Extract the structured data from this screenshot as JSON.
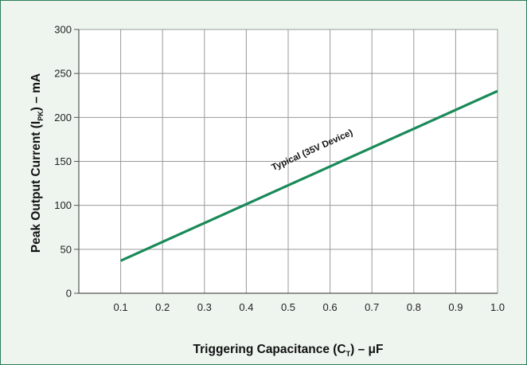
{
  "chart_data": {
    "type": "line",
    "title": "",
    "xlabel": {
      "main": "Triggering Capacitance (C",
      "sub": "T",
      "after": ") – μF"
    },
    "ylabel": {
      "main": "Peak Output Current (I",
      "sub": "PK",
      "after": ") – mA"
    },
    "x_ticks": [
      0.1,
      0.2,
      0.3,
      0.4,
      0.5,
      0.6,
      0.7,
      0.8,
      0.9,
      1.0
    ],
    "x_tick_labels": [
      "0.1",
      "0.2",
      "0.3",
      "0.4",
      "0.5",
      "0.6",
      "0.7",
      "0.8",
      "0.9",
      "1.0"
    ],
    "y_ticks": [
      0,
      50,
      100,
      150,
      200,
      250,
      300
    ],
    "y_tick_labels": [
      "0",
      "50",
      "100",
      "150",
      "200",
      "250",
      "300"
    ],
    "xlim": [
      0,
      1.0
    ],
    "ylim": [
      0,
      300
    ],
    "grid": true,
    "series": [
      {
        "name": "Typical (35V Device)",
        "color": "#1a8a5a",
        "x": [
          0.1,
          1.0
        ],
        "y": [
          37,
          230
        ]
      }
    ],
    "annotation": {
      "text": "Typical (35V Device)",
      "x": 0.56,
      "y": 160
    }
  }
}
